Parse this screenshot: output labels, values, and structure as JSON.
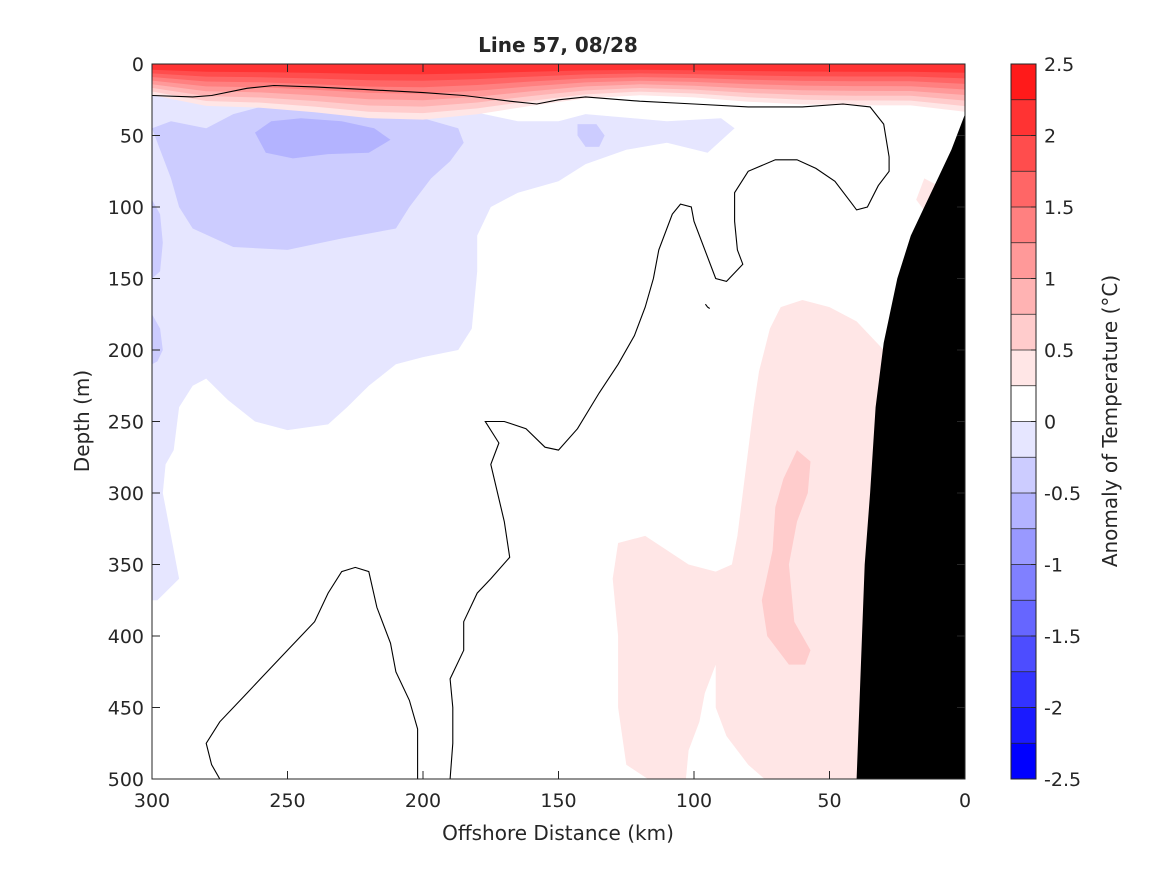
{
  "chart_data": {
    "type": "heatmap",
    "subtype": "filled-contour section",
    "title": "Line 57, 08/28",
    "xlabel": "Offshore Distance (km)",
    "ylabel": "Depth (m)",
    "xlim": [
      300,
      0
    ],
    "ylim": [
      0,
      500
    ],
    "x_reversed": true,
    "y_reversed": true,
    "xticks": [
      300,
      250,
      200,
      150,
      100,
      50,
      0
    ],
    "yticks": [
      0,
      50,
      100,
      150,
      200,
      250,
      300,
      350,
      400,
      450,
      500
    ],
    "grid": false,
    "colorbar": {
      "label": "Anomaly of Temperature (°C)",
      "levels": [
        -2.5,
        -2.25,
        -2.0,
        -1.75,
        -1.5,
        -1.25,
        -1.0,
        -0.75,
        -0.5,
        -0.25,
        0,
        0.25,
        0.5,
        0.75,
        1.0,
        1.25,
        1.5,
        1.75,
        2.0,
        2.25,
        2.5
      ],
      "colors": [
        "#0000ff",
        "#1a1aff",
        "#3333ff",
        "#4d4dff",
        "#6666ff",
        "#8080ff",
        "#9999ff",
        "#b3b3ff",
        "#ccccff",
        "#e6e6ff",
        "#ffffff",
        "#ffe6e6",
        "#ffcccc",
        "#ffb3b3",
        "#ff9999",
        "#ff8080",
        "#ff6666",
        "#ff4d4d",
        "#ff3333",
        "#ff1a1a"
      ],
      "tick_values": [
        2.5,
        2,
        1.5,
        1,
        0.5,
        0,
        -0.5,
        -1,
        -1.5,
        -2,
        -2.5
      ],
      "tick_labels": [
        "2.5",
        "2",
        "1.5",
        "1",
        "0.5",
        "0",
        "-0.5",
        "-1",
        "-1.5",
        "-2",
        "-2.5"
      ]
    },
    "bathymetry_color": "#000000",
    "zero_contour_color": "#000000",
    "regions": [
      {
        "anomaly": -0.25,
        "outline": [
          [
            300,
            22
          ],
          [
            285,
            20
          ],
          [
            265,
            25
          ],
          [
            250,
            22
          ],
          [
            230,
            24
          ],
          [
            210,
            28
          ],
          [
            185,
            32
          ],
          [
            165,
            40
          ],
          [
            150,
            40
          ],
          [
            140,
            35
          ],
          [
            110,
            40
          ],
          [
            90,
            38
          ],
          [
            85,
            45
          ],
          [
            95,
            62
          ],
          [
            110,
            55
          ],
          [
            125,
            60
          ],
          [
            140,
            70
          ],
          [
            150,
            82
          ],
          [
            165,
            90
          ],
          [
            175,
            100
          ],
          [
            180,
            120
          ],
          [
            180,
            145
          ],
          [
            182,
            185
          ],
          [
            187,
            200
          ],
          [
            200,
            205
          ],
          [
            210,
            210
          ],
          [
            220,
            225
          ],
          [
            228,
            240
          ],
          [
            235,
            252
          ],
          [
            250,
            256
          ],
          [
            262,
            250
          ],
          [
            272,
            235
          ],
          [
            280,
            220
          ],
          [
            285,
            225
          ],
          [
            290,
            240
          ],
          [
            292,
            270
          ],
          [
            295,
            280
          ],
          [
            296,
            300
          ],
          [
            293,
            330
          ],
          [
            290,
            360
          ],
          [
            298,
            375
          ],
          [
            300,
            375
          ]
        ]
      },
      {
        "anomaly": -0.5,
        "outline": [
          [
            300,
            45
          ],
          [
            293,
            40
          ],
          [
            280,
            45
          ],
          [
            270,
            35
          ],
          [
            260,
            30
          ],
          [
            240,
            30
          ],
          [
            215,
            35
          ],
          [
            200,
            38
          ],
          [
            187,
            45
          ],
          [
            185,
            55
          ],
          [
            190,
            68
          ],
          [
            197,
            80
          ],
          [
            205,
            100
          ],
          [
            210,
            115
          ],
          [
            230,
            122
          ],
          [
            250,
            130
          ],
          [
            270,
            128
          ],
          [
            285,
            115
          ],
          [
            290,
            100
          ],
          [
            293,
            80
          ],
          [
            297,
            60
          ]
        ]
      },
      {
        "anomaly": -0.5,
        "outline": [
          [
            300,
            95
          ],
          [
            297,
            105
          ],
          [
            296,
            125
          ],
          [
            297,
            145
          ],
          [
            300,
            150
          ]
        ]
      },
      {
        "anomaly": -0.5,
        "outline": [
          [
            300,
            175
          ],
          [
            297,
            185
          ],
          [
            296,
            200
          ],
          [
            298,
            208
          ],
          [
            300,
            210
          ]
        ]
      },
      {
        "anomaly": -0.5,
        "outline": [
          [
            143,
            42
          ],
          [
            136,
            42
          ],
          [
            133,
            50
          ],
          [
            135,
            58
          ],
          [
            140,
            58
          ],
          [
            143,
            50
          ]
        ]
      },
      {
        "anomaly": -0.75,
        "outline": [
          [
            262,
            48
          ],
          [
            256,
            40
          ],
          [
            245,
            38
          ],
          [
            230,
            40
          ],
          [
            218,
            45
          ],
          [
            212,
            53
          ],
          [
            220,
            62
          ],
          [
            235,
            63
          ],
          [
            248,
            66
          ],
          [
            258,
            62
          ]
        ]
      },
      {
        "anomaly": 0.25,
        "outline": [
          [
            25,
            230
          ],
          [
            30,
            200
          ],
          [
            40,
            180
          ],
          [
            50,
            170
          ],
          [
            60,
            165
          ],
          [
            68,
            170
          ],
          [
            72,
            185
          ],
          [
            74,
            200
          ],
          [
            76,
            215
          ],
          [
            78,
            240
          ],
          [
            80,
            270
          ],
          [
            82,
            300
          ],
          [
            84,
            330
          ],
          [
            86,
            350
          ],
          [
            92,
            355
          ],
          [
            102,
            350
          ],
          [
            118,
            330
          ],
          [
            128,
            335
          ],
          [
            130,
            360
          ],
          [
            128,
            400
          ],
          [
            128,
            450
          ],
          [
            125,
            490
          ],
          [
            117,
            500
          ],
          [
            103,
            500
          ],
          [
            102,
            480
          ],
          [
            98,
            460
          ],
          [
            96,
            440
          ],
          [
            92,
            420
          ],
          [
            92,
            450
          ],
          [
            88,
            470
          ],
          [
            80,
            490
          ],
          [
            74,
            500
          ],
          [
            33,
            500
          ]
        ]
      },
      {
        "anomaly": 0.5,
        "outline": [
          [
            57,
            278
          ],
          [
            62,
            270
          ],
          [
            67,
            290
          ],
          [
            70,
            310
          ],
          [
            71,
            340
          ],
          [
            75,
            375
          ],
          [
            73,
            400
          ],
          [
            65,
            420
          ],
          [
            59,
            420
          ],
          [
            57,
            410
          ],
          [
            63,
            390
          ],
          [
            65,
            350
          ],
          [
            62,
            320
          ],
          [
            58,
            300
          ]
        ]
      },
      {
        "anomaly": 0.25,
        "outline": [
          [
            10,
            85
          ],
          [
            15,
            80
          ],
          [
            18,
            95
          ],
          [
            12,
            110
          ]
        ]
      }
    ],
    "surface_warm_layer": {
      "anomaly_max": 2.0,
      "depth_range_m": [
        0,
        35
      ]
    },
    "zero_contours": [
      [
        [
          300,
          22
        ],
        [
          285,
          23
        ],
        [
          278,
          22
        ],
        [
          265,
          17
        ],
        [
          255,
          15
        ],
        [
          240,
          16
        ],
        [
          220,
          18
        ],
        [
          200,
          20
        ],
        [
          185,
          22
        ],
        [
          168,
          26
        ],
        [
          158,
          28
        ],
        [
          150,
          25
        ],
        [
          140,
          23
        ],
        [
          120,
          26
        ],
        [
          100,
          28
        ],
        [
          80,
          30
        ],
        [
          60,
          30
        ],
        [
          45,
          28
        ],
        [
          35,
          30
        ],
        [
          30,
          42
        ],
        [
          28,
          65
        ],
        [
          28,
          75
        ],
        [
          32,
          85
        ],
        [
          36,
          100
        ],
        [
          40,
          102
        ],
        [
          42,
          97
        ],
        [
          48,
          82
        ],
        [
          55,
          73
        ],
        [
          62,
          67
        ],
        [
          70,
          67
        ],
        [
          80,
          75
        ],
        [
          85,
          90
        ],
        [
          85,
          110
        ],
        [
          84,
          130
        ],
        [
          82,
          140
        ],
        [
          88,
          152
        ],
        [
          92,
          150
        ],
        [
          100,
          110
        ],
        [
          101,
          100
        ],
        [
          105,
          98
        ],
        [
          108,
          105
        ],
        [
          113,
          130
        ],
        [
          115,
          150
        ],
        [
          118,
          170
        ],
        [
          122,
          190
        ],
        [
          128,
          210
        ],
        [
          135,
          230
        ],
        [
          143,
          255
        ],
        [
          150,
          270
        ],
        [
          155,
          268
        ],
        [
          162,
          255
        ],
        [
          170,
          250
        ],
        [
          177,
          250
        ],
        [
          172,
          265
        ],
        [
          175,
          280
        ],
        [
          170,
          320
        ],
        [
          168,
          345
        ],
        [
          175,
          360
        ],
        [
          180,
          370
        ],
        [
          185,
          390
        ],
        [
          185,
          410
        ],
        [
          190,
          430
        ],
        [
          189,
          450
        ],
        [
          189,
          475
        ],
        [
          190,
          500
        ]
      ],
      [
        [
          202,
          500
        ],
        [
          202,
          465
        ],
        [
          205,
          445
        ],
        [
          210,
          425
        ],
        [
          212,
          405
        ],
        [
          217,
          380
        ],
        [
          220,
          355
        ],
        [
          225,
          352
        ],
        [
          230,
          355
        ],
        [
          235,
          370
        ],
        [
          240,
          390
        ],
        [
          250,
          410
        ],
        [
          260,
          430
        ],
        [
          265,
          440
        ],
        [
          275,
          460
        ],
        [
          280,
          475
        ],
        [
          278,
          490
        ],
        [
          275,
          500
        ]
      ]
    ],
    "zero_contour_marks": [
      [
        95,
        170
      ]
    ],
    "bathymetry_profile": [
      [
        0,
        35
      ],
      [
        5,
        60
      ],
      [
        10,
        80
      ],
      [
        15,
        100
      ],
      [
        20,
        120
      ],
      [
        25,
        150
      ],
      [
        30,
        195
      ],
      [
        33,
        240
      ],
      [
        35,
        300
      ],
      [
        37,
        350
      ],
      [
        38,
        400
      ],
      [
        39,
        450
      ],
      [
        40,
        500
      ]
    ]
  }
}
